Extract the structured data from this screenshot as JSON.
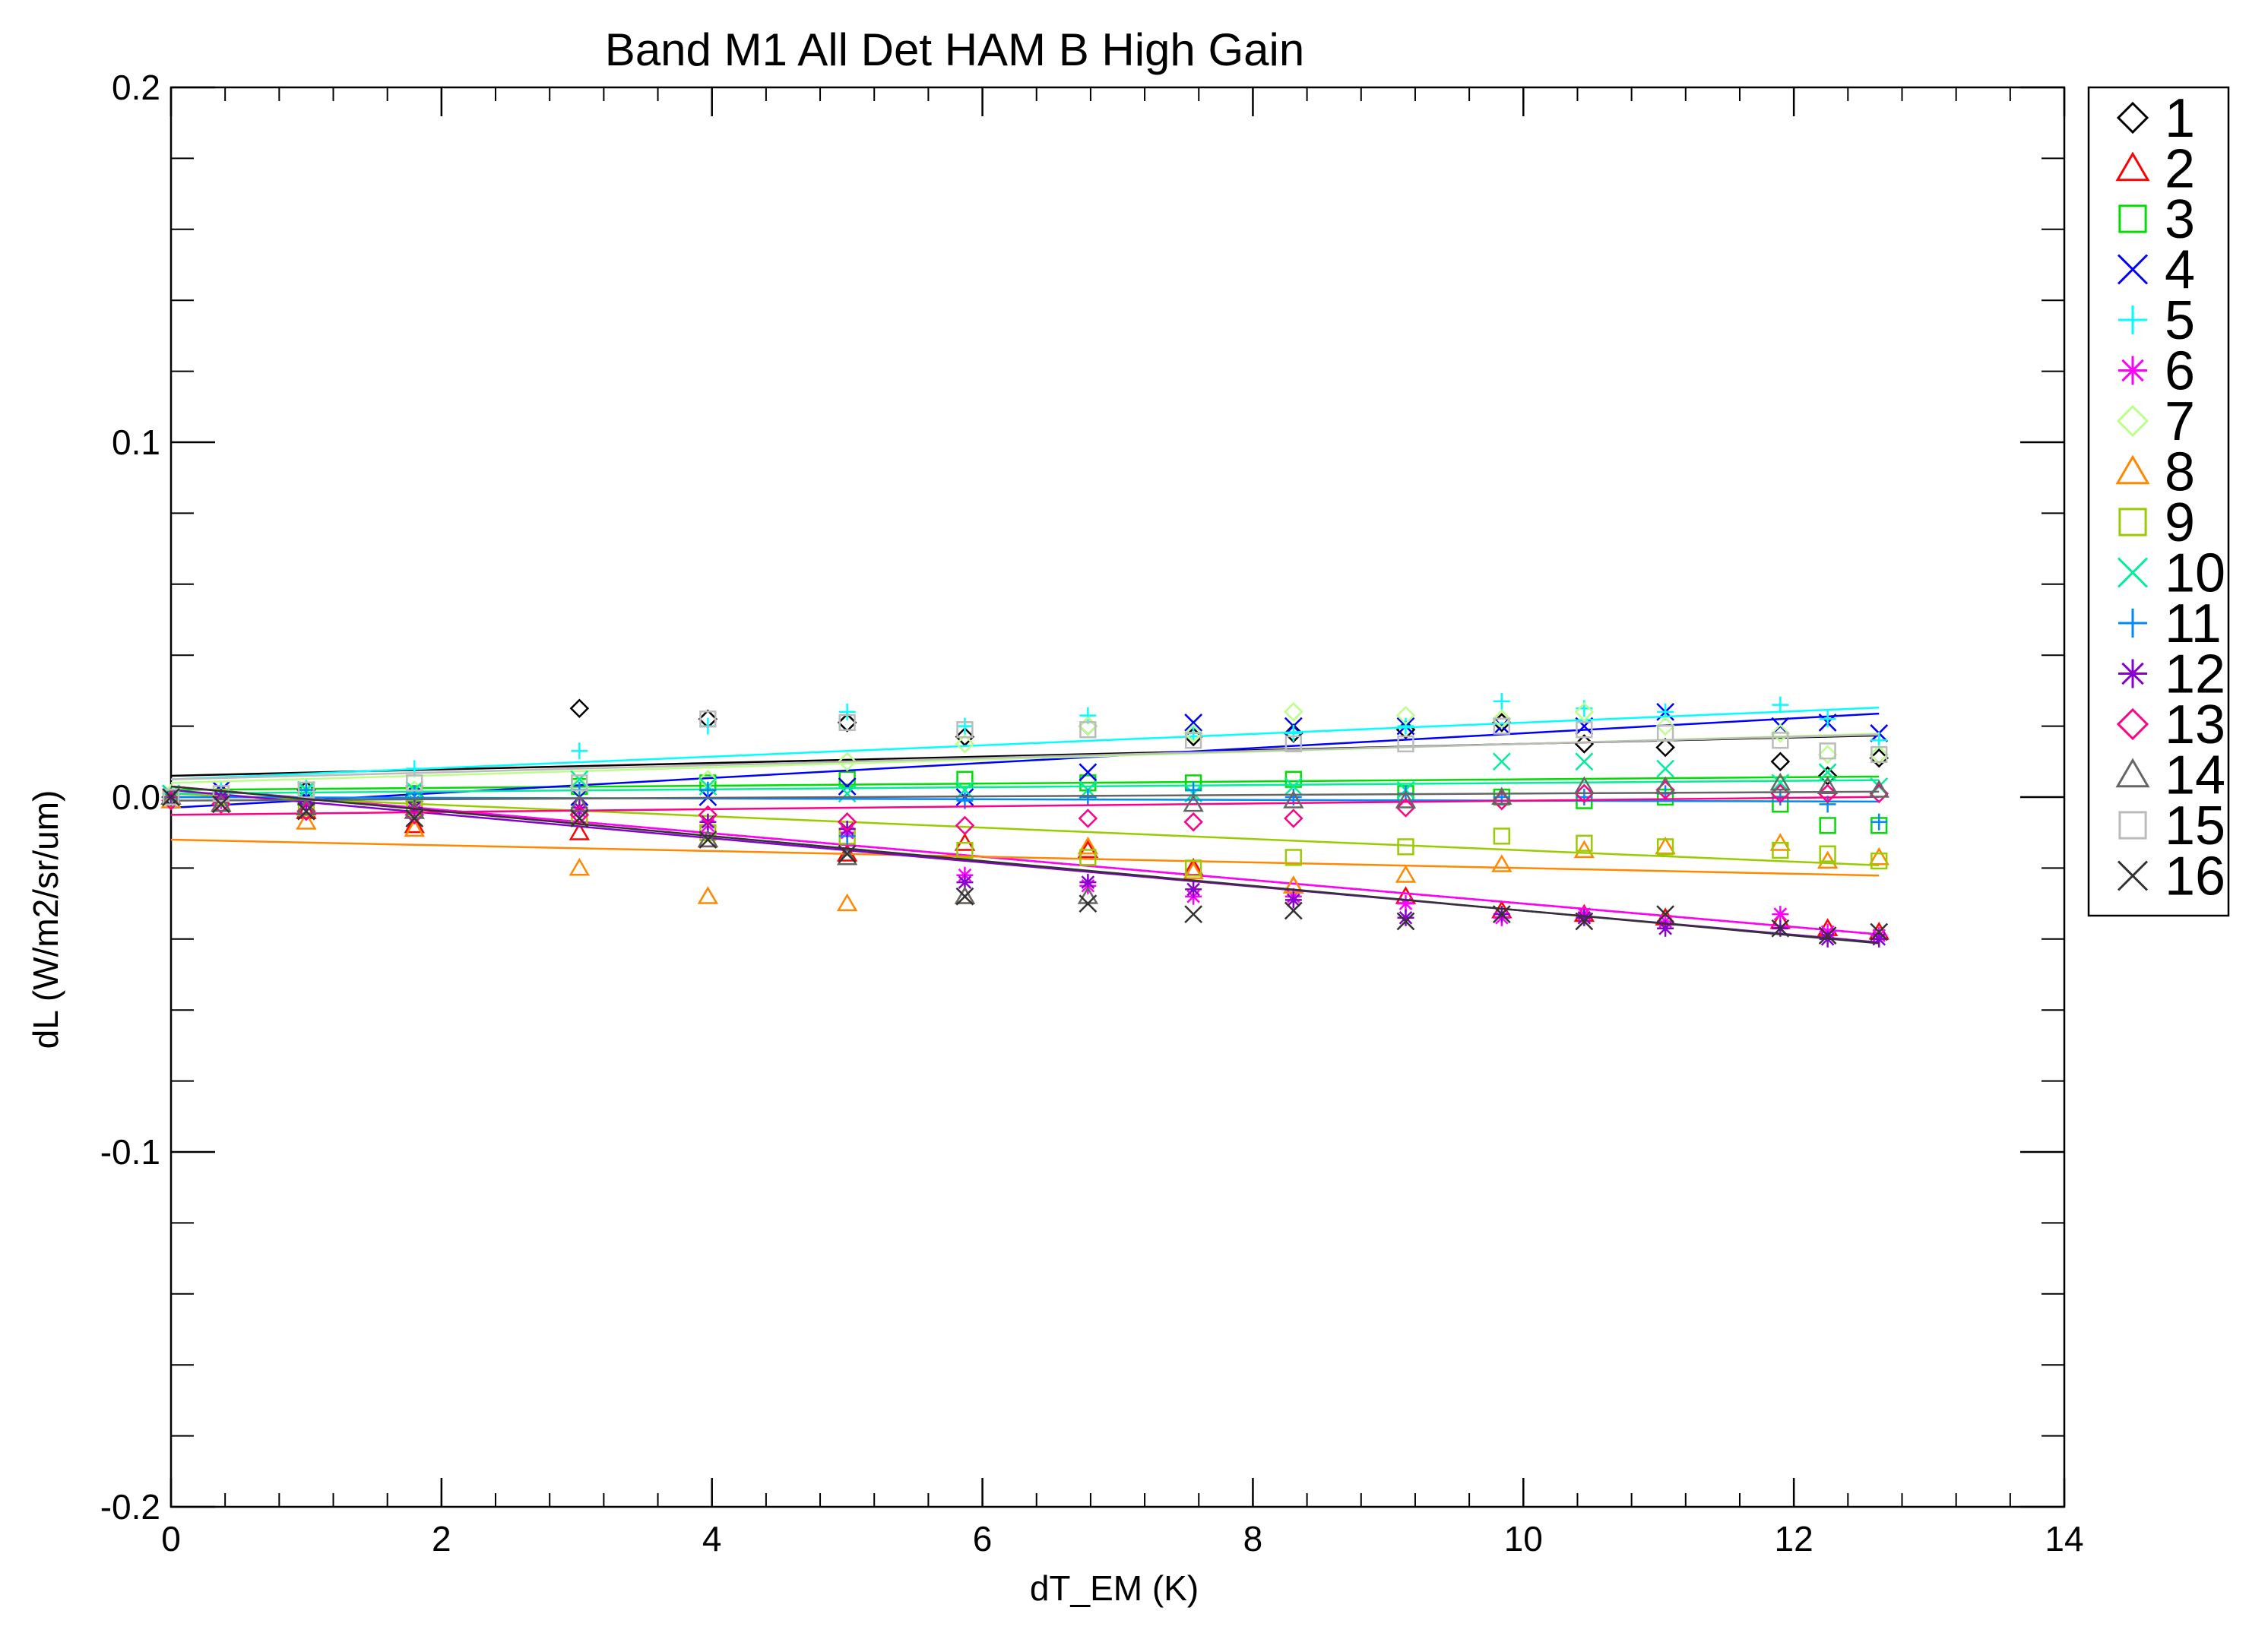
{
  "chart_data": {
    "type": "scatter",
    "title": "Band M1 All Det HAM B High Gain",
    "xlabel": "dT_EM (K)",
    "ylabel": "dL (W/m2/sr/um)",
    "xlim": [
      0,
      14
    ],
    "ylim": [
      -0.2,
      0.2
    ],
    "x_ticks": [
      0,
      2,
      4,
      6,
      8,
      10,
      12,
      14
    ],
    "x_tick_labels": [
      "0",
      "2",
      "4",
      "6",
      "8",
      "10",
      "12",
      "14"
    ],
    "y_ticks": [
      -0.2,
      -0.1,
      0.0,
      0.1,
      0.2
    ],
    "y_tick_labels": [
      "-0.2",
      "-0.1",
      "0.0",
      "0.1",
      "0.2"
    ],
    "legend_position": "right-outside",
    "x": [
      0.0,
      0.37,
      1.0,
      1.8,
      3.02,
      3.97,
      5.0,
      5.87,
      6.78,
      7.56,
      8.3,
      9.13,
      9.84,
      10.45,
      11.05,
      11.9,
      12.25,
      12.63
    ],
    "series": [
      {
        "name": "1",
        "marker": "diamond",
        "color": "#000000",
        "fit": [
          0.006,
          0.0009
        ],
        "values": [
          0.0,
          0.001,
          0.002,
          0.0,
          0.025,
          0.022,
          0.021,
          0.017,
          0.02,
          0.017,
          0.018,
          0.019,
          0.021,
          0.015,
          0.014,
          0.01,
          0.006,
          0.011
        ]
      },
      {
        "name": "2",
        "marker": "triangle",
        "color": "#ff0000",
        "fit": [
          0.003,
          -0.0033
        ],
        "values": [
          0.0,
          -0.002,
          -0.004,
          -0.008,
          -0.01,
          -0.012,
          -0.016,
          -0.013,
          -0.015,
          -0.02,
          -0.025,
          -0.028,
          -0.032,
          -0.033,
          -0.034,
          -0.035,
          -0.037,
          -0.038
        ]
      },
      {
        "name": "3",
        "marker": "square",
        "color": "#00dd00",
        "fit": [
          0.002,
          0.0003
        ],
        "values": [
          0.0,
          0.0,
          0.002,
          0.001,
          0.003,
          0.004,
          0.005,
          0.005,
          0.004,
          0.004,
          0.005,
          0.001,
          0.0,
          -0.001,
          0.0,
          -0.002,
          -0.008,
          -0.008
        ]
      },
      {
        "name": "4",
        "marker": "x",
        "color": "#0000ff",
        "fit": [
          -0.003,
          0.0021
        ],
        "values": [
          0.001,
          0.002,
          0.0,
          0.001,
          0.0,
          0.0,
          0.003,
          0.0,
          0.007,
          0.021,
          0.02,
          0.02,
          0.02,
          0.02,
          0.024,
          0.02,
          0.021,
          0.018
        ]
      },
      {
        "name": "5",
        "marker": "plus",
        "color": "#00ffff",
        "fit": [
          0.005,
          0.0016
        ],
        "values": [
          0.001,
          0.002,
          0.003,
          0.008,
          0.013,
          0.02,
          0.024,
          0.02,
          0.023,
          0.018,
          0.018,
          0.02,
          0.027,
          0.025,
          0.024,
          0.026,
          0.022,
          0.016
        ]
      },
      {
        "name": "6",
        "marker": "asterisk",
        "color": "#ff00ff",
        "fit": [
          0.003,
          -0.0033
        ],
        "values": [
          0.0,
          -0.001,
          -0.002,
          -0.004,
          -0.004,
          -0.008,
          -0.01,
          -0.022,
          -0.025,
          -0.028,
          -0.028,
          -0.03,
          -0.034,
          -0.033,
          -0.035,
          -0.033,
          -0.038,
          -0.039
        ]
      },
      {
        "name": "7",
        "marker": "diamond",
        "color": "#bbff88",
        "fit": [
          0.004,
          0.0011
        ],
        "values": [
          0.001,
          0.0,
          0.001,
          0.002,
          0.003,
          0.005,
          0.01,
          0.015,
          0.02,
          0.018,
          0.024,
          0.023,
          0.022,
          0.024,
          0.02,
          0.018,
          0.012,
          0.012
        ]
      },
      {
        "name": "8",
        "marker": "triangle",
        "color": "#ff8800",
        "fit": [
          -0.012,
          -0.0008
        ],
        "values": [
          -0.001,
          -0.002,
          -0.007,
          -0.009,
          -0.02,
          -0.028,
          -0.03,
          -0.028,
          -0.014,
          -0.021,
          -0.025,
          -0.022,
          -0.019,
          -0.015,
          -0.014,
          -0.013,
          -0.018,
          -0.017
        ]
      },
      {
        "name": "9",
        "marker": "square",
        "color": "#99cc00",
        "fit": [
          0.001,
          -0.0016
        ],
        "values": [
          0.0,
          0.0,
          -0.003,
          -0.003,
          -0.006,
          -0.01,
          -0.011,
          -0.015,
          -0.017,
          -0.02,
          -0.017,
          -0.014,
          -0.011,
          -0.013,
          -0.014,
          -0.015,
          -0.016,
          -0.018
        ]
      },
      {
        "name": "10",
        "marker": "x",
        "color": "#00ee99",
        "fit": [
          0.001,
          0.0003
        ],
        "values": [
          0.001,
          0.0,
          0.002,
          0.002,
          0.005,
          0.003,
          0.001,
          0.002,
          0.002,
          0.001,
          0.003,
          0.002,
          0.01,
          0.01,
          0.008,
          0.004,
          0.007,
          0.003
        ]
      },
      {
        "name": "11",
        "marker": "plus",
        "color": "#0088ff",
        "fit": [
          0.0,
          -0.0001
        ],
        "values": [
          0.0,
          0.0,
          0.002,
          0.001,
          0.002,
          0.002,
          -0.011,
          -0.001,
          0.0,
          0.002,
          0.0,
          0.001,
          0.0,
          0.0,
          0.001,
          0.0,
          -0.002,
          -0.007
        ]
      },
      {
        "name": "12",
        "marker": "asterisk",
        "color": "#8800cc",
        "fit": [
          0.002,
          -0.0034
        ],
        "values": [
          0.0,
          0.0,
          -0.002,
          -0.003,
          -0.003,
          -0.007,
          -0.009,
          -0.024,
          -0.024,
          -0.026,
          -0.029,
          -0.034,
          -0.033,
          -0.034,
          -0.037,
          -0.037,
          -0.04,
          -0.04
        ]
      },
      {
        "name": "13",
        "marker": "diamond",
        "color": "#ff0088",
        "fit": [
          -0.005,
          0.0004
        ],
        "values": [
          -0.001,
          -0.002,
          -0.004,
          -0.005,
          -0.005,
          -0.005,
          -0.007,
          -0.008,
          -0.006,
          -0.007,
          -0.006,
          -0.003,
          -0.001,
          0.001,
          0.002,
          0.001,
          0.001,
          0.001
        ]
      },
      {
        "name": "14",
        "marker": "triangle",
        "color": "#666666",
        "fit": [
          -0.001,
          0.0002
        ],
        "values": [
          0.0,
          -0.002,
          -0.003,
          -0.004,
          -0.002,
          -0.012,
          -0.017,
          -0.028,
          -0.028,
          -0.002,
          -0.001,
          -0.001,
          0.0,
          0.003,
          0.003,
          0.004,
          0.003,
          0.002
        ]
      },
      {
        "name": "15",
        "marker": "square",
        "color": "#bbbbbb",
        "fit": [
          0.005,
          0.001
        ],
        "values": [
          0.0,
          0.001,
          0.002,
          0.004,
          0.004,
          0.022,
          0.021,
          0.019,
          0.019,
          0.016,
          0.015,
          0.015,
          0.02,
          0.019,
          0.018,
          0.016,
          0.013,
          0.012
        ]
      },
      {
        "name": "16",
        "marker": "x",
        "color": "#333333",
        "fit": [
          0.003,
          -0.0035
        ],
        "values": [
          0.0,
          -0.002,
          -0.004,
          -0.006,
          -0.006,
          -0.012,
          -0.016,
          -0.028,
          -0.03,
          -0.033,
          -0.032,
          -0.035,
          -0.033,
          -0.035,
          -0.033,
          -0.037,
          -0.039,
          -0.038
        ]
      }
    ]
  }
}
